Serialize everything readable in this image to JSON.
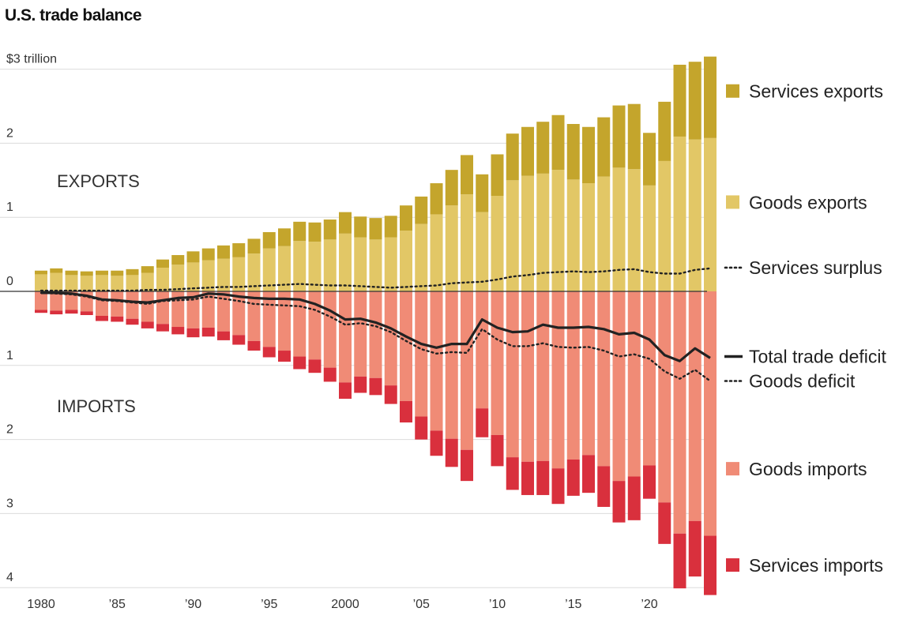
{
  "title": "U.S. trade balance",
  "colors": {
    "services_exports": "#c4a52c",
    "goods_exports": "#e2c766",
    "goods_imports": "#f08b76",
    "services_imports": "#d9303d",
    "line": "#222222"
  },
  "chart_data": {
    "type": "bar",
    "title": "U.S. trade balance",
    "unit_label": "$3 trillion",
    "years": [
      1980,
      1981,
      1982,
      1983,
      1984,
      1985,
      1986,
      1987,
      1988,
      1989,
      1990,
      1991,
      1992,
      1993,
      1994,
      1995,
      1996,
      1997,
      1998,
      1999,
      2000,
      2001,
      2002,
      2003,
      2004,
      2005,
      2006,
      2007,
      2008,
      2009,
      2010,
      2011,
      2012,
      2013,
      2014,
      2015,
      2016,
      2017,
      2018,
      2019,
      2020,
      2021,
      2022,
      2023,
      2024
    ],
    "x_tick_years": [
      1980,
      1985,
      1990,
      1995,
      2000,
      2005,
      2010,
      2015,
      2020
    ],
    "x_tick_labels": [
      "1980",
      "’85",
      "’90",
      "’95",
      "2000",
      "’05",
      "’10",
      "’15",
      "’20"
    ],
    "y_ticks_exports": [
      {
        "value": 0,
        "label": "0"
      },
      {
        "value": 1,
        "label": "1"
      },
      {
        "value": 2,
        "label": "2"
      },
      {
        "value": 3,
        "label": "$3 trillion"
      }
    ],
    "y_ticks_imports": [
      {
        "value": 1,
        "label": "1"
      },
      {
        "value": 2,
        "label": "2"
      },
      {
        "value": 3,
        "label": "3"
      },
      {
        "value": 4,
        "label": "4"
      }
    ],
    "ylim": [
      -4.1,
      3.2
    ],
    "region_labels": {
      "exports": "EXPORTS",
      "imports": "IMPORTS"
    },
    "series": [
      {
        "name": "Services exports",
        "key": "services_exports",
        "values": [
          0.05,
          0.06,
          0.06,
          0.06,
          0.06,
          0.07,
          0.08,
          0.09,
          0.11,
          0.13,
          0.15,
          0.16,
          0.18,
          0.19,
          0.2,
          0.22,
          0.24,
          0.26,
          0.26,
          0.27,
          0.29,
          0.28,
          0.29,
          0.29,
          0.34,
          0.37,
          0.42,
          0.48,
          0.53,
          0.51,
          0.56,
          0.63,
          0.66,
          0.7,
          0.74,
          0.75,
          0.76,
          0.8,
          0.84,
          0.88,
          0.71,
          0.8,
          0.97,
          1.05,
          1.1
        ]
      },
      {
        "name": "Goods exports",
        "key": "goods_exports",
        "values": [
          0.23,
          0.25,
          0.22,
          0.21,
          0.22,
          0.21,
          0.22,
          0.25,
          0.32,
          0.36,
          0.39,
          0.42,
          0.44,
          0.46,
          0.51,
          0.58,
          0.61,
          0.68,
          0.67,
          0.7,
          0.78,
          0.73,
          0.7,
          0.73,
          0.82,
          0.91,
          1.04,
          1.16,
          1.31,
          1.07,
          1.29,
          1.5,
          1.56,
          1.59,
          1.64,
          1.51,
          1.46,
          1.55,
          1.67,
          1.65,
          1.43,
          1.76,
          2.09,
          2.05,
          2.07
        ]
      },
      {
        "name": "Goods imports",
        "key": "goods_imports",
        "values": [
          0.25,
          0.26,
          0.25,
          0.27,
          0.33,
          0.34,
          0.37,
          0.41,
          0.44,
          0.48,
          0.5,
          0.49,
          0.54,
          0.59,
          0.67,
          0.75,
          0.8,
          0.88,
          0.92,
          1.03,
          1.23,
          1.15,
          1.17,
          1.27,
          1.48,
          1.69,
          1.88,
          1.99,
          2.14,
          1.58,
          1.94,
          2.24,
          2.3,
          2.29,
          2.39,
          2.27,
          2.21,
          2.36,
          2.56,
          2.5,
          2.35,
          2.85,
          3.27,
          3.1,
          3.3
        ]
      },
      {
        "name": "Services imports",
        "key": "services_imports",
        "values": [
          0.04,
          0.05,
          0.05,
          0.05,
          0.07,
          0.07,
          0.08,
          0.09,
          0.1,
          0.1,
          0.12,
          0.12,
          0.12,
          0.13,
          0.13,
          0.14,
          0.15,
          0.17,
          0.18,
          0.19,
          0.22,
          0.22,
          0.23,
          0.25,
          0.29,
          0.31,
          0.34,
          0.38,
          0.42,
          0.39,
          0.42,
          0.44,
          0.45,
          0.46,
          0.48,
          0.49,
          0.51,
          0.55,
          0.56,
          0.59,
          0.45,
          0.56,
          0.74,
          0.75,
          0.8
        ]
      },
      {
        "name": "Services surplus",
        "key": "services_surplus",
        "values": [
          0.01,
          0.01,
          0.01,
          0.01,
          0.01,
          0.01,
          0.01,
          0.02,
          0.02,
          0.03,
          0.04,
          0.05,
          0.06,
          0.06,
          0.07,
          0.08,
          0.09,
          0.1,
          0.09,
          0.08,
          0.08,
          0.07,
          0.06,
          0.05,
          0.06,
          0.07,
          0.08,
          0.11,
          0.12,
          0.13,
          0.16,
          0.2,
          0.22,
          0.25,
          0.26,
          0.27,
          0.26,
          0.27,
          0.29,
          0.3,
          0.26,
          0.24,
          0.24,
          0.29,
          0.31
        ]
      },
      {
        "name": "Total trade deficit",
        "key": "total_deficit",
        "values": [
          -0.02,
          -0.02,
          -0.03,
          -0.06,
          -0.11,
          -0.12,
          -0.14,
          -0.15,
          -0.12,
          -0.09,
          -0.08,
          -0.03,
          -0.04,
          -0.07,
          -0.09,
          -0.1,
          -0.1,
          -0.11,
          -0.17,
          -0.26,
          -0.38,
          -0.37,
          -0.42,
          -0.5,
          -0.61,
          -0.71,
          -0.76,
          -0.71,
          -0.71,
          -0.38,
          -0.49,
          -0.55,
          -0.54,
          -0.45,
          -0.49,
          -0.49,
          -0.48,
          -0.51,
          -0.58,
          -0.56,
          -0.65,
          -0.86,
          -0.94,
          -0.77,
          -0.9
        ]
      },
      {
        "name": "Goods deficit",
        "key": "goods_deficit",
        "values": [
          -0.02,
          -0.03,
          -0.04,
          -0.07,
          -0.12,
          -0.13,
          -0.15,
          -0.17,
          -0.13,
          -0.12,
          -0.11,
          -0.07,
          -0.1,
          -0.13,
          -0.17,
          -0.18,
          -0.19,
          -0.2,
          -0.25,
          -0.34,
          -0.45,
          -0.43,
          -0.47,
          -0.55,
          -0.67,
          -0.78,
          -0.84,
          -0.82,
          -0.83,
          -0.51,
          -0.65,
          -0.74,
          -0.74,
          -0.7,
          -0.75,
          -0.76,
          -0.75,
          -0.8,
          -0.88,
          -0.85,
          -0.91,
          -1.08,
          -1.18,
          -1.06,
          -1.21
        ]
      }
    ],
    "legend": [
      {
        "label": "Services exports",
        "kind": "swatch",
        "color_key": "services_exports",
        "anchor_value": 2.7
      },
      {
        "label": "Goods exports",
        "kind": "swatch",
        "color_key": "goods_exports",
        "anchor_value": 1.2
      },
      {
        "label": "Services surplus",
        "kind": "dotted",
        "anchor_value": 0.32
      },
      {
        "label": "Total trade deficit",
        "kind": "solid",
        "anchor_value": -0.88
      },
      {
        "label": "Goods deficit",
        "kind": "dotted",
        "anchor_value": -1.21
      },
      {
        "label": "Goods imports",
        "kind": "swatch",
        "color_key": "goods_imports",
        "anchor_value": -2.4
      },
      {
        "label": "Services imports",
        "kind": "swatch",
        "color_key": "services_imports",
        "anchor_value": -3.7
      }
    ]
  }
}
